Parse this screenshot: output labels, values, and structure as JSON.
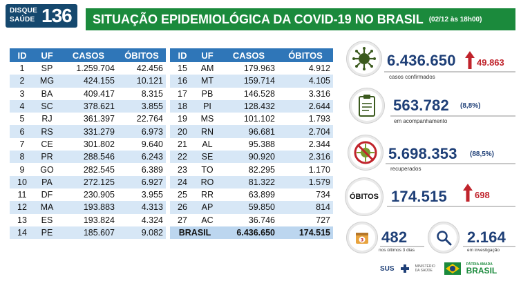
{
  "brand": {
    "word1": "DISQUE",
    "word2": "SAÚDE",
    "number": "136"
  },
  "header": {
    "title": "SITUAÇÃO EPIDEMIOLÓGICA DA COVID-19 NO BRASIL",
    "date": "(02/12 às 18h00)"
  },
  "table": {
    "headers": [
      "ID",
      "UF",
      "CASOS",
      "ÓBITOS"
    ],
    "left": [
      {
        "id": "1",
        "uf": "SP",
        "casos": "1.259.704",
        "obitos": "42.456"
      },
      {
        "id": "2",
        "uf": "MG",
        "casos": "424.155",
        "obitos": "10.121"
      },
      {
        "id": "3",
        "uf": "BA",
        "casos": "409.417",
        "obitos": "8.315"
      },
      {
        "id": "4",
        "uf": "SC",
        "casos": "378.621",
        "obitos": "3.855"
      },
      {
        "id": "5",
        "uf": "RJ",
        "casos": "361.397",
        "obitos": "22.764"
      },
      {
        "id": "6",
        "uf": "RS",
        "casos": "331.279",
        "obitos": "6.973"
      },
      {
        "id": "7",
        "uf": "CE",
        "casos": "301.802",
        "obitos": "9.640"
      },
      {
        "id": "8",
        "uf": "PR",
        "casos": "288.546",
        "obitos": "6.243"
      },
      {
        "id": "9",
        "uf": "GO",
        "casos": "282.545",
        "obitos": "6.389"
      },
      {
        "id": "10",
        "uf": "PA",
        "casos": "272.125",
        "obitos": "6.927"
      },
      {
        "id": "11",
        "uf": "DF",
        "casos": "230.905",
        "obitos": "3.955"
      },
      {
        "id": "12",
        "uf": "MA",
        "casos": "193.883",
        "obitos": "4.313"
      },
      {
        "id": "13",
        "uf": "ES",
        "casos": "193.824",
        "obitos": "4.324"
      },
      {
        "id": "14",
        "uf": "PE",
        "casos": "185.607",
        "obitos": "9.082"
      }
    ],
    "right": [
      {
        "id": "15",
        "uf": "AM",
        "casos": "179.963",
        "obitos": "4.912"
      },
      {
        "id": "16",
        "uf": "MT",
        "casos": "159.714",
        "obitos": "4.105"
      },
      {
        "id": "17",
        "uf": "PB",
        "casos": "146.528",
        "obitos": "3.316"
      },
      {
        "id": "18",
        "uf": "PI",
        "casos": "128.432",
        "obitos": "2.644"
      },
      {
        "id": "19",
        "uf": "MS",
        "casos": "101.102",
        "obitos": "1.793"
      },
      {
        "id": "20",
        "uf": "RN",
        "casos": "96.681",
        "obitos": "2.704"
      },
      {
        "id": "21",
        "uf": "AL",
        "casos": "95.388",
        "obitos": "2.344"
      },
      {
        "id": "22",
        "uf": "SE",
        "casos": "90.920",
        "obitos": "2.316"
      },
      {
        "id": "23",
        "uf": "TO",
        "casos": "82.295",
        "obitos": "1.170"
      },
      {
        "id": "24",
        "uf": "RO",
        "casos": "81.322",
        "obitos": "1.579"
      },
      {
        "id": "25",
        "uf": "RR",
        "casos": "63.899",
        "obitos": "734"
      },
      {
        "id": "26",
        "uf": "AP",
        "casos": "59.850",
        "obitos": "814"
      },
      {
        "id": "27",
        "uf": "AC",
        "casos": "36.746",
        "obitos": "727"
      }
    ],
    "total": {
      "label": "BRASIL",
      "casos": "6.436.650",
      "obitos": "174.515"
    }
  },
  "stats": {
    "confirmed": {
      "value": "6.436.650",
      "increase": "49.863",
      "label": "casos confirmados",
      "icon": "virus-icon"
    },
    "monitoring": {
      "value": "563.782",
      "pct": "(8,8%)",
      "label": "em acompanhamento",
      "icon": "clipboard-icon"
    },
    "recovered": {
      "value": "5.698.353",
      "pct": "(88,5%)",
      "label": "recuperados",
      "icon": "no-virus-icon"
    },
    "deaths": {
      "badge": "ÓBITOS",
      "value": "174.515",
      "increase": "698"
    },
    "last3": {
      "badge": "3",
      "value": "482",
      "label": "nos últimos 3 dias",
      "icon": "calendar-icon"
    },
    "investigation": {
      "value": "2.164",
      "label": "em investigação",
      "icon": "magnifier-icon"
    }
  },
  "footer": {
    "sus": "SUS",
    "ministry": "MINISTÉRIO DA SAÚDE",
    "patria": "PÁTRIA AMADA",
    "brasil": "BRASIL"
  },
  "colors": {
    "header_green": "#1b8a3c",
    "table_blue": "#2f76b8",
    "row_alt": "#d7e7f6",
    "number_navy": "#1e3f77",
    "increase_red": "#c0232b",
    "brand_navy": "#15486e"
  }
}
